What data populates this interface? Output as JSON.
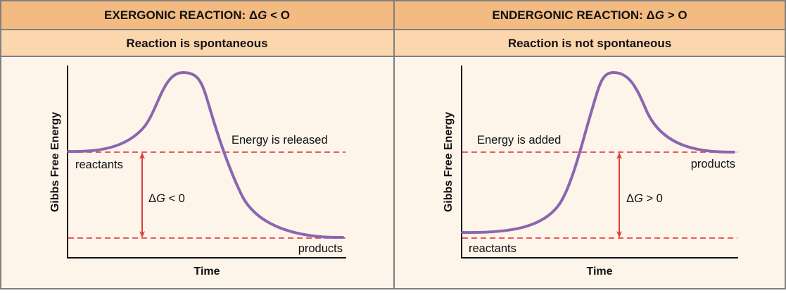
{
  "colors": {
    "header": "#f3bb82",
    "subheader": "#fcd7ae",
    "panel": "#fdf4ea",
    "border": "#808080",
    "curve": "#8a66b0",
    "dashed": "#e5474a",
    "arrow": "#d9403e"
  },
  "panels": [
    {
      "title_prefix": "EXERGONIC REACTION: Δ",
      "title_var": "G",
      "title_suffix": " < O",
      "subtitle": "Reaction is spontaneous",
      "y_axis_label": "Gibbs Free Energy",
      "x_axis_label": "Time",
      "energy_label": "Energy is released",
      "reactants_label": "reactants",
      "products_label": "products",
      "delta_prefix": "Δ",
      "delta_var": "G",
      "delta_suffix": " < 0"
    },
    {
      "title_prefix": "ENDERGONIC REACTION: Δ",
      "title_var": "G",
      "title_suffix": " > O",
      "subtitle": "Reaction is not spontaneous",
      "y_axis_label": "Gibbs Free Energy",
      "x_axis_label": "Time",
      "energy_label": "Energy is added",
      "reactants_label": "reactants",
      "products_label": "products",
      "delta_prefix": "Δ",
      "delta_var": "G",
      "delta_suffix": " > 0"
    }
  ]
}
